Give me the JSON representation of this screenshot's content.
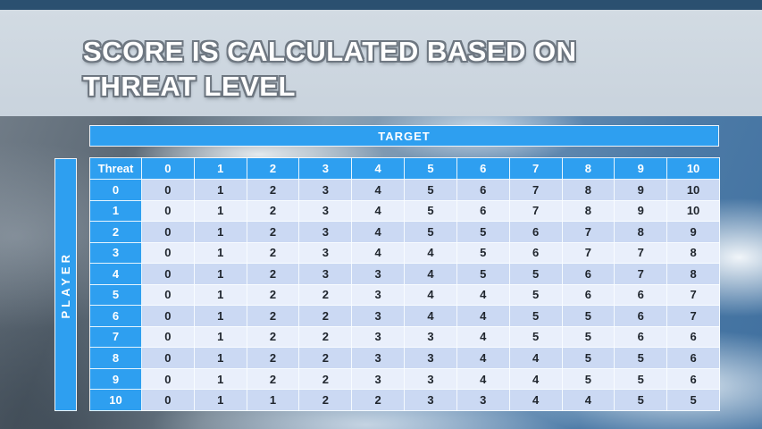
{
  "slide": {
    "title_line1": "SCORE IS CALCULATED BASED ON",
    "title_line2": "THREAT LEVEL"
  },
  "score_table": {
    "target_label": "TARGET",
    "player_label": "PLAYER",
    "corner_label": "Threat",
    "column_headers": [
      "0",
      "1",
      "2",
      "3",
      "4",
      "5",
      "6",
      "7",
      "8",
      "9",
      "10"
    ],
    "rows": [
      {
        "threat": "0",
        "values": [
          0,
          1,
          2,
          3,
          4,
          5,
          6,
          7,
          8,
          9,
          10
        ]
      },
      {
        "threat": "1",
        "values": [
          0,
          1,
          2,
          3,
          4,
          5,
          6,
          7,
          8,
          9,
          10
        ]
      },
      {
        "threat": "2",
        "values": [
          0,
          1,
          2,
          3,
          4,
          5,
          5,
          6,
          7,
          8,
          9
        ]
      },
      {
        "threat": "3",
        "values": [
          0,
          1,
          2,
          3,
          4,
          4,
          5,
          6,
          7,
          7,
          8
        ]
      },
      {
        "threat": "4",
        "values": [
          0,
          1,
          2,
          3,
          3,
          4,
          5,
          5,
          6,
          7,
          8
        ]
      },
      {
        "threat": "5",
        "values": [
          0,
          1,
          2,
          2,
          3,
          4,
          4,
          5,
          6,
          6,
          7
        ]
      },
      {
        "threat": "6",
        "values": [
          0,
          1,
          2,
          2,
          3,
          4,
          4,
          5,
          5,
          6,
          7
        ]
      },
      {
        "threat": "7",
        "values": [
          0,
          1,
          2,
          2,
          3,
          3,
          4,
          5,
          5,
          6,
          6
        ]
      },
      {
        "threat": "8",
        "values": [
          0,
          1,
          2,
          2,
          3,
          3,
          4,
          4,
          5,
          5,
          6
        ]
      },
      {
        "threat": "9",
        "values": [
          0,
          1,
          2,
          2,
          3,
          3,
          4,
          4,
          5,
          5,
          6
        ]
      },
      {
        "threat": "10",
        "values": [
          0,
          1,
          1,
          2,
          2,
          3,
          3,
          4,
          4,
          5,
          5
        ]
      }
    ]
  },
  "colors": {
    "accent_blue": "#2E9FF0",
    "row_even": "#CBD9F3",
    "row_odd": "#E9EFFB",
    "top_strip": "#2B5070",
    "title_text": "#FFFFFF",
    "cell_text": "#20262E"
  }
}
